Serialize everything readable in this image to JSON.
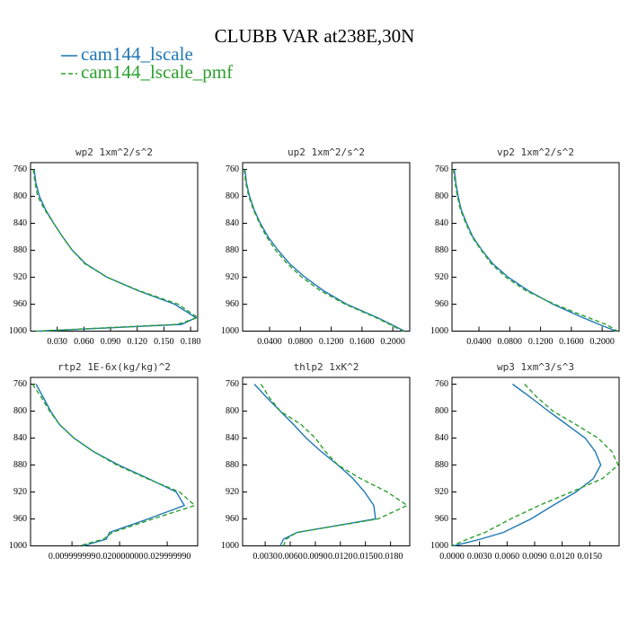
{
  "title": "CLUBB VAR at238E,30N",
  "legend": [
    {
      "name": "cam144_lscale",
      "color": "#1f77b4",
      "dash": false
    },
    {
      "name": "cam144_lscale_pmf",
      "color": "#2ca02c",
      "dash": true
    }
  ],
  "chart_data": [
    {
      "type": "line",
      "title": "wp2  1xm^2/s^2",
      "levels": [
        760,
        780,
        800,
        820,
        840,
        860,
        880,
        900,
        920,
        940,
        960,
        980,
        990,
        1000
      ],
      "xlim": [
        0,
        0.188
      ],
      "ylim": [
        1000,
        750
      ],
      "xticks": [
        {
          "value": 0.03,
          "label": "0.030"
        },
        {
          "value": 0.06,
          "label": "0.060"
        },
        {
          "value": 0.09,
          "label": "0.090"
        },
        {
          "value": 0.12,
          "label": "0.120"
        },
        {
          "value": 0.15,
          "label": "0.150"
        },
        {
          "value": 0.18,
          "label": "0.180"
        }
      ],
      "yticks": [
        760,
        800,
        840,
        880,
        920,
        960,
        1000
      ],
      "series": [
        {
          "color": "#1f77b4",
          "dash": false,
          "values": [
            0.004,
            0.006,
            0.01,
            0.017,
            0.026,
            0.036,
            0.047,
            0.062,
            0.086,
            0.121,
            0.162,
            0.186,
            0.17,
            0.01
          ]
        },
        {
          "color": "#2ca02c",
          "dash": true,
          "values": [
            0.003,
            0.005,
            0.008,
            0.016,
            0.026,
            0.036,
            0.047,
            0.061,
            0.086,
            0.122,
            0.166,
            0.188,
            0.165,
            0.006
          ]
        }
      ]
    },
    {
      "type": "line",
      "title": "up2  1xm^2/s^2",
      "levels": [
        760,
        780,
        800,
        820,
        840,
        860,
        880,
        900,
        920,
        940,
        960,
        980,
        990,
        1000
      ],
      "xlim": [
        0.005,
        0.222
      ],
      "ylim": [
        1000,
        750
      ],
      "xticks": [
        {
          "value": 0.04,
          "label": "0.0400"
        },
        {
          "value": 0.08,
          "label": "0.0800"
        },
        {
          "value": 0.12,
          "label": "0.1200"
        },
        {
          "value": 0.16,
          "label": "0.1600"
        },
        {
          "value": 0.2,
          "label": "0.2000"
        }
      ],
      "yticks": [
        760,
        800,
        840,
        880,
        920,
        960,
        1000
      ],
      "series": [
        {
          "color": "#1f77b4",
          "dash": false,
          "values": [
            0.008,
            0.01,
            0.014,
            0.02,
            0.028,
            0.038,
            0.051,
            0.066,
            0.086,
            0.11,
            0.14,
            0.18,
            0.198,
            0.215
          ]
        },
        {
          "color": "#2ca02c",
          "dash": true,
          "values": [
            0.007,
            0.009,
            0.013,
            0.019,
            0.027,
            0.036,
            0.048,
            0.063,
            0.082,
            0.106,
            0.138,
            0.178,
            0.196,
            0.213
          ]
        }
      ]
    },
    {
      "type": "line",
      "title": "vp2  1xm^2/s^2",
      "levels": [
        760,
        780,
        800,
        820,
        840,
        860,
        880,
        900,
        920,
        940,
        960,
        980,
        990,
        1000
      ],
      "xlim": [
        0.005,
        0.222
      ],
      "ylim": [
        1000,
        750
      ],
      "xticks": [
        {
          "value": 0.04,
          "label": "0.0400"
        },
        {
          "value": 0.08,
          "label": "0.0800"
        },
        {
          "value": 0.12,
          "label": "0.1200"
        },
        {
          "value": 0.16,
          "label": "0.1600"
        },
        {
          "value": 0.2,
          "label": "0.2000"
        }
      ],
      "yticks": [
        760,
        800,
        840,
        880,
        920,
        960,
        1000
      ],
      "series": [
        {
          "color": "#1f77b4",
          "dash": false,
          "values": [
            0.008,
            0.01,
            0.013,
            0.017,
            0.024,
            0.032,
            0.044,
            0.058,
            0.078,
            0.104,
            0.136,
            0.175,
            0.196,
            0.218
          ]
        },
        {
          "color": "#2ca02c",
          "dash": true,
          "values": [
            0.007,
            0.009,
            0.012,
            0.016,
            0.023,
            0.031,
            0.043,
            0.056,
            0.075,
            0.101,
            0.138,
            0.182,
            0.205,
            0.22
          ]
        }
      ]
    },
    {
      "type": "line",
      "title": "rtp2  1E-6x(kg/kg)^2",
      "levels": [
        760,
        780,
        800,
        820,
        840,
        860,
        880,
        900,
        920,
        940,
        960,
        980,
        990,
        1000
      ],
      "xlim": [
        0.0013,
        0.0364
      ],
      "ylim": [
        1000,
        750
      ],
      "xticks": [
        {
          "value": 0.01,
          "label": "0.009999999"
        },
        {
          "value": 0.02,
          "label": "0.020000000"
        },
        {
          "value": 0.03,
          "label": "0.029999990"
        }
      ],
      "yticks": [
        760,
        800,
        840,
        880,
        920,
        960,
        1000
      ],
      "series": [
        {
          "color": "#1f77b4",
          "dash": false,
          "values": [
            0.00245,
            0.004,
            0.0055,
            0.0074,
            0.0104,
            0.0145,
            0.0198,
            0.026,
            0.0319,
            0.0336,
            0.026,
            0.0179,
            0.0172,
            0.0123
          ]
        },
        {
          "color": "#2ca02c",
          "dash": true,
          "values": [
            0.0017,
            0.0036,
            0.0053,
            0.0074,
            0.0104,
            0.0145,
            0.0194,
            0.0257,
            0.0326,
            0.0358,
            0.027,
            0.0185,
            0.0166,
            0.0115
          ]
        }
      ]
    },
    {
      "type": "line",
      "title": "thlp2  1xK^2",
      "levels": [
        760,
        780,
        800,
        820,
        840,
        860,
        880,
        900,
        920,
        940,
        960,
        980,
        990,
        1000
      ],
      "xlim": [
        0.0003,
        0.0203
      ],
      "ylim": [
        1000,
        750
      ],
      "xticks": [
        {
          "value": 0.003,
          "label": "0.0030"
        },
        {
          "value": 0.006,
          "label": "0.0060"
        },
        {
          "value": 0.009,
          "label": "0.0090"
        },
        {
          "value": 0.012,
          "label": "0.0120"
        },
        {
          "value": 0.015,
          "label": "0.0150"
        },
        {
          "value": 0.018,
          "label": "0.0180"
        }
      ],
      "yticks": [
        760,
        800,
        840,
        880,
        920,
        960,
        1000
      ],
      "series": [
        {
          "color": "#1f77b4",
          "dash": false,
          "values": [
            0.0017,
            0.0032,
            0.0048,
            0.0064,
            0.0079,
            0.0097,
            0.0117,
            0.0135,
            0.0149,
            0.016,
            0.0162,
            0.0068,
            0.0052,
            0.0048
          ]
        },
        {
          "color": "#2ca02c",
          "dash": true,
          "values": [
            0.0025,
            0.0035,
            0.0048,
            0.0073,
            0.009,
            0.0102,
            0.0117,
            0.0144,
            0.0176,
            0.02,
            0.0165,
            0.0068,
            0.0055,
            0.0052
          ]
        }
      ]
    },
    {
      "type": "line",
      "title": "wp3  1xm^3/s^3",
      "levels": [
        760,
        780,
        800,
        820,
        840,
        860,
        880,
        900,
        920,
        940,
        960,
        980,
        990,
        1000
      ],
      "xlim": [
        0,
        0.0182
      ],
      "ylim": [
        1000,
        750
      ],
      "xticks": [
        {
          "value": 0,
          "label": "0.0000"
        },
        {
          "value": 0.003,
          "label": "0.0030"
        },
        {
          "value": 0.006,
          "label": "0.0060"
        },
        {
          "value": 0.009,
          "label": "0.0090"
        },
        {
          "value": 0.012,
          "label": "0.0120"
        },
        {
          "value": 0.015,
          "label": "0.0150"
        }
      ],
      "yticks": [
        760,
        800,
        840,
        880,
        920,
        960,
        1000
      ],
      "series": [
        {
          "color": "#1f77b4",
          "dash": false,
          "values": [
            0.0066,
            0.0086,
            0.0105,
            0.0125,
            0.0145,
            0.0156,
            0.0162,
            0.0154,
            0.0135,
            0.011,
            0.0086,
            0.0056,
            0.0031,
            0.0002
          ]
        },
        {
          "color": "#2ca02c",
          "dash": true,
          "values": [
            0.0079,
            0.0093,
            0.011,
            0.0135,
            0.0159,
            0.0174,
            0.0181,
            0.0164,
            0.013,
            0.0095,
            0.0064,
            0.0036,
            0.0017,
            0.0
          ]
        }
      ]
    }
  ]
}
